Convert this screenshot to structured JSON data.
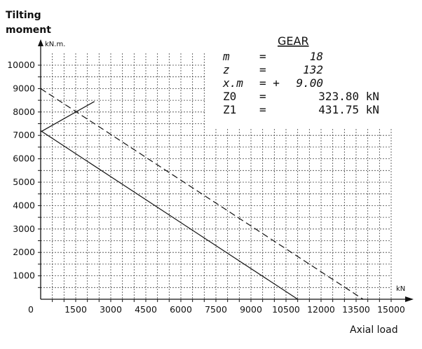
{
  "chart_data": {
    "type": "line",
    "ylabel": "Tilting moment",
    "yunit": "kN.m.",
    "xlabel": "Axial load",
    "xunit": "kN",
    "xlim": [
      0,
      15000
    ],
    "ylim": [
      0,
      10000
    ],
    "x_ticks": [
      "0",
      "1500",
      "3000",
      "4500",
      "6000",
      "7500",
      "9000",
      "10500",
      "12000",
      "13500",
      "15000"
    ],
    "y_ticks": [
      "1000",
      "2000",
      "3000",
      "4000",
      "5000",
      "6000",
      "7000",
      "8000",
      "9000",
      "10000"
    ],
    "grid": true,
    "series": [
      {
        "style": "solid",
        "points": [
          [
            0,
            7200
          ],
          [
            11000,
            0
          ]
        ]
      },
      {
        "style": "dashed",
        "points": [
          [
            0,
            9000
          ],
          [
            13800,
            0
          ]
        ]
      },
      {
        "style": "solid",
        "points": [
          [
            0,
            7150
          ],
          [
            2300,
            8450
          ]
        ]
      }
    ],
    "annotation": {
      "title": "GEAR",
      "rows": [
        {
          "name": "m",
          "eq": "=",
          "value": "18",
          "upright": false
        },
        {
          "name": "z",
          "eq": "=",
          "value": "132",
          "upright": false
        },
        {
          "name": "x.m",
          "eq": "= +",
          "value": "9.00",
          "upright": false
        },
        {
          "name": "Z0",
          "eq": "=",
          "value": "323.80 kN",
          "upright": true
        },
        {
          "name": "Z1",
          "eq": "=",
          "value": "431.75 kN",
          "upright": true
        }
      ]
    }
  }
}
